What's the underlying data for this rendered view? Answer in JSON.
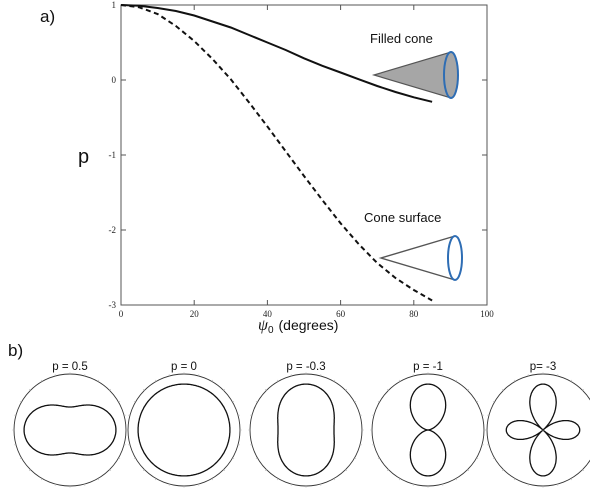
{
  "panels": {
    "a": "a)",
    "b": "b)"
  },
  "chart_data": [
    {
      "type": "line",
      "xlabel_symbol": "ψ",
      "xlabel_subscript": "0",
      "xlabel_unit": "(degrees)",
      "ylabel": "p",
      "xlim": [
        0,
        100
      ],
      "ylim": [
        -3,
        1
      ],
      "xticks": [
        0,
        20,
        40,
        60,
        80,
        100
      ],
      "yticks": [
        1,
        0,
        -1,
        -2,
        -3
      ],
      "grid": false,
      "series": [
        {
          "style": "solid",
          "x": [
            0,
            5,
            10,
            15,
            20,
            25,
            30,
            35,
            40,
            45,
            50,
            55,
            60,
            65,
            70,
            75,
            80,
            85
          ],
          "y": [
            1.0,
            0.99,
            0.96,
            0.92,
            0.86,
            0.78,
            0.7,
            0.6,
            0.5,
            0.4,
            0.29,
            0.19,
            0.1,
            0.01,
            -0.08,
            -0.16,
            -0.23,
            -0.29
          ]
        },
        {
          "style": "dashed",
          "x": [
            0,
            5,
            10,
            15,
            20,
            25,
            30,
            35,
            40,
            45,
            50,
            55,
            60,
            65,
            70,
            75,
            80,
            85
          ],
          "y": [
            1.0,
            0.97,
            0.88,
            0.72,
            0.52,
            0.28,
            0.01,
            -0.3,
            -0.62,
            -0.95,
            -1.28,
            -1.6,
            -1.91,
            -2.19,
            -2.44,
            -2.64,
            -2.8,
            -2.94
          ]
        }
      ],
      "annotations": [
        {
          "text": "Filled cone",
          "fill": "#a6a6a6",
          "outline": "#555555",
          "rim": "#2e6db4"
        },
        {
          "text": "Cone surface",
          "fill": "none",
          "outline": "#555555",
          "rim": "#2e6db4"
        }
      ]
    },
    {
      "type": "polar",
      "grid": false,
      "series": [
        {
          "label": "p = 0.5",
          "p": 0.5
        },
        {
          "label": "p = 0",
          "p": 0
        },
        {
          "label": "p = -0.3",
          "p": -0.3
        },
        {
          "label": "p = -1",
          "p": -1
        },
        {
          "label": "p= -3",
          "p": -3
        }
      ]
    }
  ]
}
